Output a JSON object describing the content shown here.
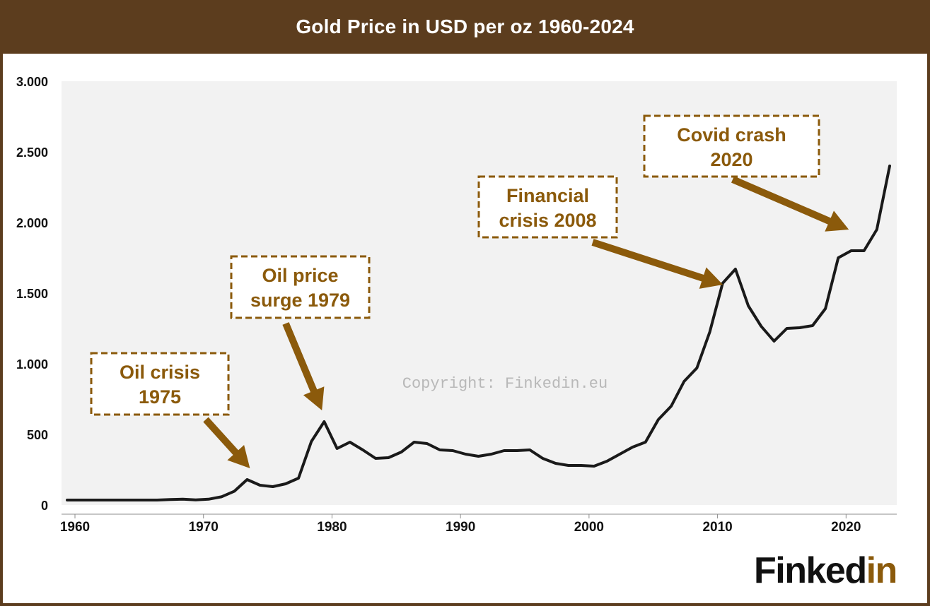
{
  "chart_data": {
    "type": "line",
    "title": "Gold Price in USD per oz 1960-2024",
    "xlabel": "",
    "ylabel": "",
    "xlim": [
      1960,
      2024
    ],
    "ylim": [
      0,
      3000
    ],
    "x_ticks": [
      1960,
      1970,
      1980,
      1990,
      2000,
      2010,
      2020
    ],
    "y_ticks": [
      {
        "value": 0,
        "label": "0"
      },
      {
        "value": 500,
        "label": "500"
      },
      {
        "value": 1000,
        "label": "1.000"
      },
      {
        "value": 1500,
        "label": "1.500"
      },
      {
        "value": 2000,
        "label": "2.000"
      },
      {
        "value": 2500,
        "label": "2.500"
      },
      {
        "value": 3000,
        "label": "3.000"
      }
    ],
    "grid": false,
    "plot_background": "#f2f2f2",
    "line_color": "#1a1a1a",
    "series": [
      {
        "name": "",
        "x": [
          1960,
          1961,
          1962,
          1963,
          1964,
          1965,
          1966,
          1967,
          1968,
          1969,
          1970,
          1971,
          1972,
          1973,
          1974,
          1975,
          1976,
          1977,
          1978,
          1979,
          1980,
          1981,
          1982,
          1983,
          1984,
          1985,
          1986,
          1987,
          1988,
          1989,
          1990,
          1991,
          1992,
          1993,
          1994,
          1995,
          1996,
          1997,
          1998,
          1999,
          2000,
          2001,
          2002,
          2003,
          2004,
          2005,
          2006,
          2007,
          2008,
          2009,
          2010,
          2011,
          2012,
          2013,
          2014,
          2015,
          2016,
          2017,
          2018,
          2019,
          2020,
          2021,
          2022,
          2023,
          2024
        ],
        "values": [
          35,
          35,
          35,
          35,
          35,
          35,
          35,
          35,
          39,
          41,
          36,
          41,
          58,
          97,
          180,
          140,
          130,
          150,
          190,
          450,
          590,
          400,
          445,
          390,
          330,
          335,
          375,
          445,
          435,
          390,
          385,
          360,
          345,
          360,
          385,
          385,
          390,
          330,
          295,
          280,
          280,
          275,
          310,
          360,
          410,
          445,
          605,
          700,
          875,
          970,
          1225,
          1570,
          1670,
          1410,
          1265,
          1160,
          1250,
          1255,
          1270,
          1390,
          1750,
          1800,
          1800,
          1950,
          2400
        ]
      }
    ],
    "annotations": [
      {
        "line1": "Oil crisis",
        "line2": "1975",
        "target": [
          1974,
          180
        ]
      },
      {
        "line1": "Oil price",
        "line2": "surge 1979",
        "target": [
          1979.6,
          590
        ]
      },
      {
        "line1": "Financial",
        "line2": "crisis 2008",
        "target": [
          2010.8,
          1480
        ]
      },
      {
        "line1": "Covid crash",
        "line2": "2020",
        "target": [
          2020.6,
          1870
        ]
      }
    ],
    "annotation_color": "#8b5a0b",
    "watermark": "Copyright: Finkedin.eu"
  },
  "brand": {
    "part1": "Finked",
    "part2": "in"
  }
}
